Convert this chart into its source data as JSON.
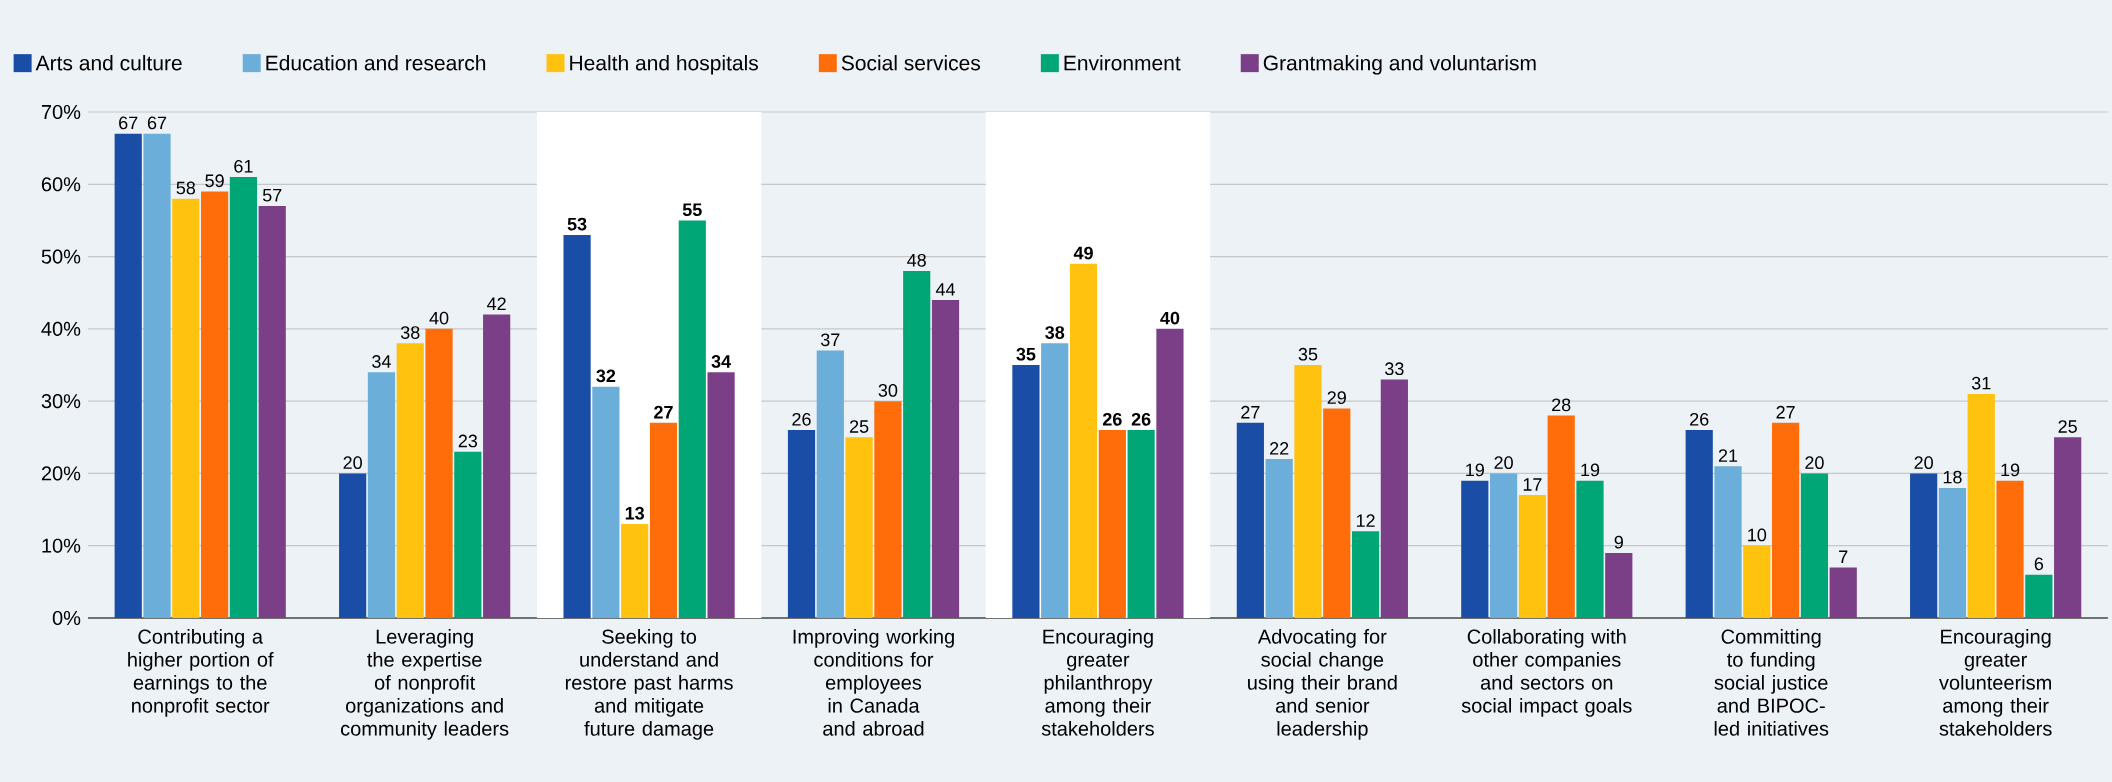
{
  "chart_data": {
    "type": "bar",
    "categories": [
      "Contributing a higher portion of earnings to the nonprofit sector",
      "Leveraging the expertise of nonprofit organizations and community leaders",
      "Seeking to understand and restore past harms and mitigate future damage",
      "Improving working conditions for employees in Canada and abroad",
      "Encouraging greater philanthropy among their stakeholders",
      "Advocating for social change using their brand and senior leadership",
      "Collaborating with other companies and sectors on social impact goals",
      "Committing to funding social justice and BIPOC-led initiatives",
      "Encouraging greater volunteerism among their stakeholders"
    ],
    "series": [
      {
        "name": "Arts and culture",
        "color": "#1a4ea6",
        "values": [
          67,
          20,
          53,
          26,
          35,
          27,
          19,
          26,
          20
        ]
      },
      {
        "name": "Education and research",
        "color": "#6aaed9",
        "values": [
          67,
          34,
          32,
          37,
          38,
          22,
          20,
          21,
          18
        ]
      },
      {
        "name": "Health and hospitals",
        "color": "#ffc20e",
        "values": [
          58,
          38,
          13,
          25,
          49,
          35,
          17,
          10,
          31
        ]
      },
      {
        "name": "Social services",
        "color": "#ff6d0a",
        "values": [
          59,
          40,
          27,
          30,
          26,
          29,
          28,
          27,
          19
        ]
      },
      {
        "name": "Environment",
        "color": "#00a676",
        "values": [
          61,
          23,
          55,
          48,
          26,
          12,
          19,
          20,
          6
        ]
      },
      {
        "name": "Grantmaking and voluntarism",
        "color": "#7b3f87",
        "values": [
          57,
          42,
          34,
          44,
          40,
          33,
          9,
          7,
          25
        ]
      }
    ],
    "ylim": [
      0,
      70
    ],
    "yticks": [
      {
        "value": 0,
        "label": "0%"
      },
      {
        "value": 10,
        "label": "10%"
      },
      {
        "value": 20,
        "label": "20%"
      },
      {
        "value": 30,
        "label": "30%"
      },
      {
        "value": 40,
        "label": "40%"
      },
      {
        "value": 50,
        "label": "50%"
      },
      {
        "value": 60,
        "label": "60%"
      },
      {
        "value": 70,
        "label": "70%"
      }
    ],
    "grid": "y",
    "legend": "top",
    "data_labels": true,
    "bands": [
      {
        "axis": "x",
        "from": "Seeking to understand and restore past harms and mitigate future damage",
        "to": "Seeking to understand and restore past harms and mitigate future damage",
        "color": "#ffffff"
      },
      {
        "axis": "x",
        "from": "Encouraging greater philanthropy among their stakeholders",
        "to": "Encouraging greater philanthropy among their stakeholders",
        "color": "#ffffff"
      }
    ]
  }
}
